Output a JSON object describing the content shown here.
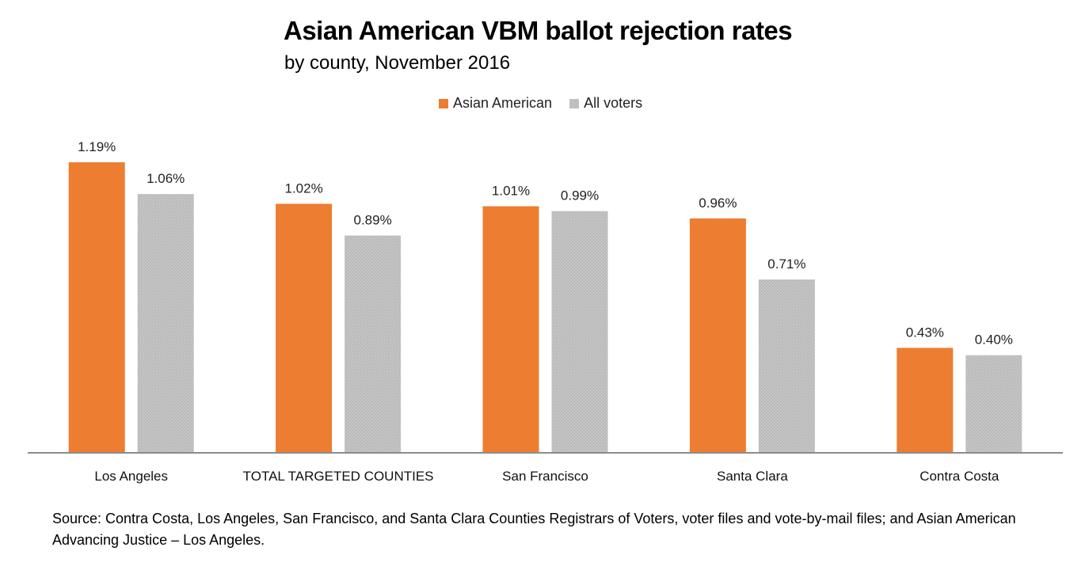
{
  "chart_data": {
    "type": "bar",
    "title": "Asian American VBM ballot rejection rates",
    "subtitle": "by county, November 2016",
    "xlabel": "",
    "ylabel": "",
    "categories": [
      "Los Angeles",
      "TOTAL TARGETED COUNTIES",
      "San Francisco",
      "Santa Clara",
      "Contra Costa"
    ],
    "series": [
      {
        "name": "Asian American",
        "color": "#ED7D31",
        "values": [
          1.19,
          1.02,
          1.01,
          0.96,
          0.43
        ],
        "labels": [
          "1.19%",
          "1.02%",
          "1.01%",
          "0.96%",
          "0.43%"
        ]
      },
      {
        "name": "All voters",
        "color": "#BFBFBF",
        "values": [
          1.06,
          0.89,
          0.99,
          0.71,
          0.4
        ],
        "labels": [
          "1.06%",
          "0.89%",
          "0.99%",
          "0.71%",
          "0.40%"
        ]
      }
    ],
    "value_unit": "%",
    "ylim": [
      0,
      1.3
    ],
    "grid": false,
    "y_axis_visible": false,
    "legend_position": "top-center",
    "data_labels": true
  },
  "source_note": "Source: Contra Costa, Los Angeles, San Francisco, and Santa Clara Counties Registrars of Voters, voter files and vote-by-mail files; and Asian American Advancing Justice – Los Angeles."
}
